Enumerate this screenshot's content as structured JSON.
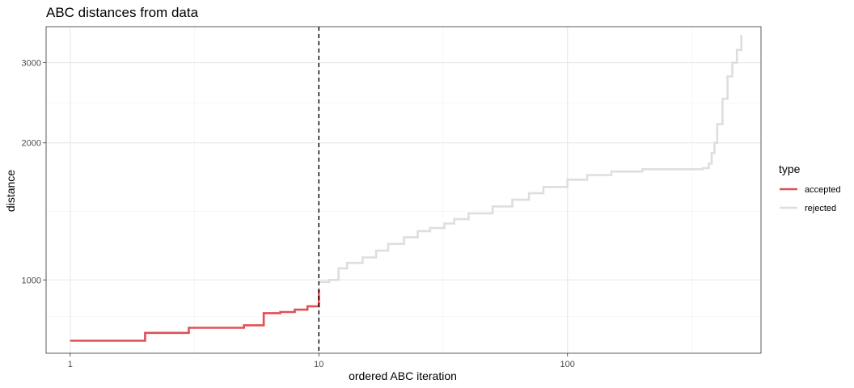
{
  "chart_data": {
    "type": "line",
    "title": "ABC distances from data",
    "xlabel": "ordered ABC iteration",
    "ylabel": "distance",
    "x_scale": "log10",
    "y_scale": "log10",
    "xlim": [
      0.8,
      600
    ],
    "ylim": [
      690,
      3600
    ],
    "x_ticks": [
      1,
      10,
      100
    ],
    "x_tick_labels": [
      "1",
      "10",
      "100"
    ],
    "y_ticks": [
      1000,
      2000,
      3000
    ],
    "y_tick_labels": [
      "1000",
      "2000",
      "3000"
    ],
    "grid": true,
    "legend": {
      "title": "type",
      "position": "right"
    },
    "threshold_line": {
      "x": 10,
      "style": "dashed",
      "color": "#000000"
    },
    "series": [
      {
        "name": "accepted",
        "color": "#E05055",
        "step": true,
        "x": [
          1,
          2,
          3,
          5,
          6,
          7,
          8,
          9,
          10
        ],
        "y": [
          735,
          765,
          785,
          795,
          845,
          850,
          860,
          875,
          950
        ]
      },
      {
        "name": "rejected",
        "color": "#DEDEDE",
        "step": true,
        "x": [
          10,
          11,
          12,
          13,
          15,
          17,
          19,
          22,
          25,
          28,
          32,
          35,
          40,
          50,
          60,
          70,
          80,
          100,
          120,
          150,
          200,
          300,
          350,
          370,
          380,
          390,
          400,
          420,
          440,
          460,
          480,
          500
        ],
        "y": [
          990,
          1000,
          1060,
          1090,
          1120,
          1160,
          1200,
          1240,
          1280,
          1300,
          1330,
          1360,
          1400,
          1450,
          1500,
          1550,
          1600,
          1660,
          1700,
          1730,
          1750,
          1750,
          1760,
          1800,
          1900,
          2000,
          2200,
          2500,
          2800,
          3000,
          3200,
          3450
        ]
      }
    ]
  }
}
